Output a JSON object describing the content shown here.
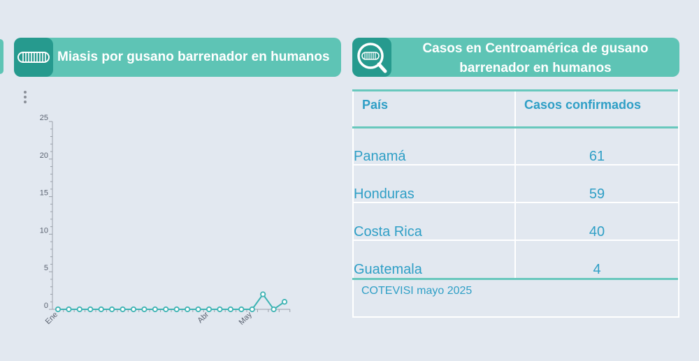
{
  "left_panel": {
    "title": "Miasis por gusano barrenador en humanos",
    "icon": "larva-icon"
  },
  "right_panel": {
    "title": "Casos en Centroamérica de gusano barrenador en humanos",
    "icon": "magnifier-larva-icon"
  },
  "colors": {
    "header_bg": "#5ec4b5",
    "icon_bg": "#269a8e",
    "line": "#3db3b3",
    "text_blue": "#2f9fc6",
    "background": "#e2e8f0"
  },
  "chart_data": {
    "type": "line",
    "x_tick_labels": [
      {
        "index": 0,
        "label": "Ene"
      },
      {
        "index": 14,
        "label": "Abr"
      },
      {
        "index": 18,
        "label": "May"
      }
    ],
    "x": [
      0,
      1,
      2,
      3,
      4,
      5,
      6,
      7,
      8,
      9,
      10,
      11,
      12,
      13,
      14,
      15,
      16,
      17,
      18,
      19,
      20,
      21
    ],
    "series": [
      {
        "values": [
          0,
          0,
          0,
          0,
          0,
          0,
          0,
          0,
          0,
          0,
          0,
          0,
          0,
          0,
          0,
          0,
          0,
          0,
          0,
          2,
          0,
          1
        ]
      }
    ],
    "yticks": [
      0,
      5,
      10,
      15,
      20,
      25
    ],
    "ylim": [
      0,
      25
    ],
    "grid": false
  },
  "table": {
    "headers": [
      "País",
      "Casos confirmados"
    ],
    "rows": [
      {
        "country": "Panamá",
        "cases": "61"
      },
      {
        "country": "Honduras",
        "cases": "59"
      },
      {
        "country": "Costa Rica",
        "cases": "40"
      },
      {
        "country": "Guatemala",
        "cases": "4"
      }
    ],
    "source": "COTEVISI mayo 2025"
  }
}
